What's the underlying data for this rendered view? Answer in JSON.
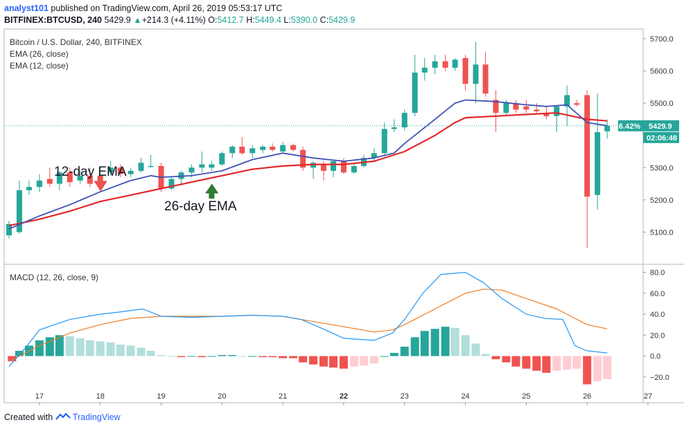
{
  "header": {
    "user": "analyst101",
    "published_text": "published on TradingView.com, April 26, 2019 05:53:17 UTC",
    "symbol": "BITFINEX:BTCUSD, 240",
    "last": "5429.9",
    "change_arrow": "▲",
    "change": "+214.3 (+4.11%)",
    "o_label": "O:",
    "o": "5412.7",
    "h_label": "H:",
    "h": "5449.4",
    "l_label": "L:",
    "l": "5390.0",
    "c_label": "C:",
    "c": "5429.9"
  },
  "legend": {
    "title": "Bitcoin / U.S. Dollar, 240, BITFINEX",
    "ema26": "EMA (26, close)",
    "ema12": "EMA (12, close)",
    "macd": "MACD (12, 26, close, 9)"
  },
  "annotations": {
    "ema12_label": "12-day EMA",
    "ema26_label": "26-day EMA"
  },
  "price_badges": {
    "pct": "6.42%",
    "price": "5429.9",
    "countdown": "02:06:48"
  },
  "footer": {
    "created_with": "Created with",
    "brand": "TradingView"
  },
  "colors": {
    "up": "#26a69a",
    "down": "#ef5350",
    "ema26": "#e3262a",
    "ema12": "#3f51b5",
    "macd_line": "#2196f3",
    "signal_line": "#ef7c21",
    "hist_up_strong": "#26a69a",
    "hist_up_weak": "#b2dfdb",
    "hist_down_strong": "#ef5350",
    "hist_down_weak": "#ffcdd2",
    "grid": "#e6e6e6",
    "badge_teal": "#26a69a"
  },
  "chart_data": [
    {
      "type": "candlestick",
      "title": "Bitcoin / U.S. Dollar, 240, BITFINEX",
      "x_ticks": [
        "17",
        "18",
        "19",
        "20",
        "21",
        "22",
        "23",
        "24",
        "25",
        "26",
        "27"
      ],
      "x_range": [
        16.5,
        27.0
      ],
      "ylim": [
        5000,
        5730
      ],
      "y_ticks": [
        "5100.0",
        "5200.0",
        "5300.0",
        "5400.0",
        "5500.0",
        "5600.0",
        "5700.0"
      ],
      "candles": [
        {
          "x": 16.5,
          "o": 5090,
          "h": 5135,
          "l": 5080,
          "c": 5125
        },
        {
          "x": 16.67,
          "o": 5100,
          "h": 5260,
          "l": 5095,
          "c": 5230
        },
        {
          "x": 16.83,
          "o": 5230,
          "h": 5260,
          "l": 5215,
          "c": 5240
        },
        {
          "x": 17.0,
          "o": 5240,
          "h": 5280,
          "l": 5225,
          "c": 5260
        },
        {
          "x": 17.17,
          "o": 5265,
          "h": 5300,
          "l": 5240,
          "c": 5250
        },
        {
          "x": 17.33,
          "o": 5250,
          "h": 5290,
          "l": 5230,
          "c": 5285
        },
        {
          "x": 17.5,
          "o": 5285,
          "h": 5300,
          "l": 5240,
          "c": 5255
        },
        {
          "x": 17.67,
          "o": 5260,
          "h": 5290,
          "l": 5250,
          "c": 5275
        },
        {
          "x": 17.83,
          "o": 5275,
          "h": 5300,
          "l": 5240,
          "c": 5250
        },
        {
          "x": 18.0,
          "o": 5250,
          "h": 5265,
          "l": 5235,
          "c": 5240
        },
        {
          "x": 18.17,
          "o": 5285,
          "h": 5320,
          "l": 5275,
          "c": 5300
        },
        {
          "x": 18.33,
          "o": 5300,
          "h": 5310,
          "l": 5270,
          "c": 5280
        },
        {
          "x": 18.5,
          "o": 5280,
          "h": 5300,
          "l": 5270,
          "c": 5290
        },
        {
          "x": 18.67,
          "o": 5290,
          "h": 5330,
          "l": 5285,
          "c": 5315
        },
        {
          "x": 18.83,
          "o": 5305,
          "h": 5340,
          "l": 5300,
          "c": 5305
        },
        {
          "x": 19.0,
          "o": 5305,
          "h": 5315,
          "l": 5225,
          "c": 5235
        },
        {
          "x": 19.17,
          "o": 5235,
          "h": 5270,
          "l": 5230,
          "c": 5265
        },
        {
          "x": 19.33,
          "o": 5265,
          "h": 5290,
          "l": 5250,
          "c": 5285
        },
        {
          "x": 19.5,
          "o": 5285,
          "h": 5310,
          "l": 5270,
          "c": 5300
        },
        {
          "x": 19.67,
          "o": 5300,
          "h": 5350,
          "l": 5285,
          "c": 5310
        },
        {
          "x": 19.83,
          "o": 5300,
          "h": 5320,
          "l": 5290,
          "c": 5310
        },
        {
          "x": 20.0,
          "o": 5310,
          "h": 5350,
          "l": 5305,
          "c": 5345
        },
        {
          "x": 20.17,
          "o": 5345,
          "h": 5370,
          "l": 5330,
          "c": 5365
        },
        {
          "x": 20.33,
          "o": 5365,
          "h": 5395,
          "l": 5340,
          "c": 5345
        },
        {
          "x": 20.5,
          "o": 5345,
          "h": 5370,
          "l": 5330,
          "c": 5360
        },
        {
          "x": 20.67,
          "o": 5355,
          "h": 5370,
          "l": 5345,
          "c": 5365
        },
        {
          "x": 20.83,
          "o": 5365,
          "h": 5375,
          "l": 5350,
          "c": 5355
        },
        {
          "x": 21.0,
          "o": 5350,
          "h": 5380,
          "l": 5345,
          "c": 5370
        },
        {
          "x": 21.17,
          "o": 5370,
          "h": 5375,
          "l": 5350,
          "c": 5355
        },
        {
          "x": 21.33,
          "o": 5355,
          "h": 5365,
          "l": 5290,
          "c": 5300
        },
        {
          "x": 21.5,
          "o": 5300,
          "h": 5320,
          "l": 5265,
          "c": 5315
        },
        {
          "x": 21.67,
          "o": 5310,
          "h": 5320,
          "l": 5260,
          "c": 5290
        },
        {
          "x": 21.83,
          "o": 5290,
          "h": 5325,
          "l": 5270,
          "c": 5320
        },
        {
          "x": 22.0,
          "o": 5320,
          "h": 5330,
          "l": 5280,
          "c": 5285
        },
        {
          "x": 22.17,
          "o": 5285,
          "h": 5310,
          "l": 5280,
          "c": 5305
        },
        {
          "x": 22.33,
          "o": 5305,
          "h": 5340,
          "l": 5300,
          "c": 5330
        },
        {
          "x": 22.5,
          "o": 5330,
          "h": 5360,
          "l": 5320,
          "c": 5345
        },
        {
          "x": 22.67,
          "o": 5345,
          "h": 5440,
          "l": 5335,
          "c": 5420
        },
        {
          "x": 22.83,
          "o": 5420,
          "h": 5450,
          "l": 5410,
          "c": 5425
        },
        {
          "x": 23.0,
          "o": 5425,
          "h": 5480,
          "l": 5415,
          "c": 5470
        },
        {
          "x": 23.17,
          "o": 5470,
          "h": 5650,
          "l": 5460,
          "c": 5595
        },
        {
          "x": 23.33,
          "o": 5595,
          "h": 5640,
          "l": 5570,
          "c": 5610
        },
        {
          "x": 23.5,
          "o": 5610,
          "h": 5650,
          "l": 5590,
          "c": 5630
        },
        {
          "x": 23.67,
          "o": 5630,
          "h": 5650,
          "l": 5600,
          "c": 5610
        },
        {
          "x": 23.83,
          "o": 5610,
          "h": 5640,
          "l": 5600,
          "c": 5635
        },
        {
          "x": 24.0,
          "o": 5640,
          "h": 5650,
          "l": 5540,
          "c": 5560
        },
        {
          "x": 24.17,
          "o": 5560,
          "h": 5690,
          "l": 5500,
          "c": 5620
        },
        {
          "x": 24.33,
          "o": 5620,
          "h": 5660,
          "l": 5520,
          "c": 5530
        },
        {
          "x": 24.5,
          "o": 5510,
          "h": 5540,
          "l": 5410,
          "c": 5470
        },
        {
          "x": 24.67,
          "o": 5470,
          "h": 5510,
          "l": 5460,
          "c": 5500
        },
        {
          "x": 24.83,
          "o": 5500,
          "h": 5510,
          "l": 5470,
          "c": 5480
        },
        {
          "x": 25.0,
          "o": 5490,
          "h": 5510,
          "l": 5470,
          "c": 5480
        },
        {
          "x": 25.17,
          "o": 5480,
          "h": 5500,
          "l": 5470,
          "c": 5475
        },
        {
          "x": 25.33,
          "o": 5470,
          "h": 5490,
          "l": 5450,
          "c": 5460
        },
        {
          "x": 25.5,
          "o": 5460,
          "h": 5490,
          "l": 5410,
          "c": 5490
        },
        {
          "x": 25.67,
          "o": 5490,
          "h": 5555,
          "l": 5430,
          "c": 5525
        },
        {
          "x": 25.83,
          "o": 5500,
          "h": 5510,
          "l": 5490,
          "c": 5495
        },
        {
          "x": 26.0,
          "o": 5525,
          "h": 5540,
          "l": 5050,
          "c": 5210
        },
        {
          "x": 26.17,
          "o": 5215,
          "h": 5530,
          "l": 5170,
          "c": 5410
        },
        {
          "x": 26.33,
          "o": 5412.7,
          "h": 5449.4,
          "l": 5390.0,
          "c": 5429.9
        }
      ],
      "ema12": [
        [
          16.5,
          5110
        ],
        [
          17.0,
          5150
        ],
        [
          17.5,
          5185
        ],
        [
          18.0,
          5225
        ],
        [
          18.5,
          5260
        ],
        [
          18.83,
          5275
        ],
        [
          19.0,
          5270
        ],
        [
          19.5,
          5275
        ],
        [
          20.0,
          5290
        ],
        [
          20.5,
          5325
        ],
        [
          21.0,
          5345
        ],
        [
          21.5,
          5330
        ],
        [
          22.0,
          5320
        ],
        [
          22.5,
          5330
        ],
        [
          22.83,
          5345
        ],
        [
          23.0,
          5375
        ],
        [
          23.5,
          5450
        ],
        [
          23.83,
          5500
        ],
        [
          24.0,
          5510
        ],
        [
          24.5,
          5505
        ],
        [
          25.0,
          5495
        ],
        [
          25.33,
          5490
        ],
        [
          25.67,
          5495
        ],
        [
          26.0,
          5440
        ],
        [
          26.33,
          5430
        ]
      ],
      "ema26": [
        [
          16.5,
          5120
        ],
        [
          17.0,
          5140
        ],
        [
          17.5,
          5165
        ],
        [
          18.0,
          5195
        ],
        [
          18.5,
          5215
        ],
        [
          19.0,
          5235
        ],
        [
          19.5,
          5255
        ],
        [
          20.0,
          5275
        ],
        [
          20.5,
          5295
        ],
        [
          21.0,
          5305
        ],
        [
          21.5,
          5310
        ],
        [
          22.0,
          5310
        ],
        [
          22.5,
          5320
        ],
        [
          23.0,
          5350
        ],
        [
          23.5,
          5400
        ],
        [
          23.83,
          5440
        ],
        [
          24.0,
          5455
        ],
        [
          24.5,
          5460
        ],
        [
          25.0,
          5465
        ],
        [
          25.5,
          5470
        ],
        [
          26.0,
          5450
        ],
        [
          26.33,
          5445
        ]
      ]
    },
    {
      "type": "macd",
      "title": "MACD (12, 26, close, 9)",
      "ylim": [
        -30,
        85
      ],
      "y_ticks": [
        "80.0",
        "60.0",
        "40.0",
        "20.0",
        "0.0",
        "−20.0"
      ],
      "macd": [
        [
          16.5,
          -10
        ],
        [
          16.8,
          10
        ],
        [
          17.0,
          25
        ],
        [
          17.5,
          35
        ],
        [
          18.0,
          40
        ],
        [
          18.3,
          42
        ],
        [
          18.7,
          45
        ],
        [
          19.0,
          38
        ],
        [
          19.5,
          37
        ],
        [
          20.0,
          38
        ],
        [
          20.5,
          39
        ],
        [
          21.0,
          38
        ],
        [
          21.3,
          35
        ],
        [
          21.7,
          25
        ],
        [
          22.0,
          17
        ],
        [
          22.5,
          15
        ],
        [
          22.8,
          22
        ],
        [
          23.0,
          35
        ],
        [
          23.3,
          60
        ],
        [
          23.6,
          78
        ],
        [
          24.0,
          80
        ],
        [
          24.3,
          70
        ],
        [
          24.6,
          55
        ],
        [
          25.0,
          40
        ],
        [
          25.3,
          36
        ],
        [
          25.6,
          35
        ],
        [
          25.8,
          10
        ],
        [
          26.0,
          5
        ],
        [
          26.33,
          3
        ]
      ],
      "signal": [
        [
          16.5,
          -5
        ],
        [
          17.0,
          10
        ],
        [
          17.5,
          22
        ],
        [
          18.0,
          30
        ],
        [
          18.5,
          36
        ],
        [
          19.0,
          38
        ],
        [
          19.5,
          38
        ],
        [
          20.0,
          38
        ],
        [
          20.5,
          39
        ],
        [
          21.0,
          38
        ],
        [
          21.5,
          33
        ],
        [
          22.0,
          28
        ],
        [
          22.5,
          23
        ],
        [
          22.8,
          25
        ],
        [
          23.0,
          30
        ],
        [
          23.5,
          45
        ],
        [
          24.0,
          60
        ],
        [
          24.3,
          64
        ],
        [
          24.6,
          63
        ],
        [
          25.0,
          55
        ],
        [
          25.5,
          45
        ],
        [
          25.8,
          36
        ],
        [
          26.0,
          30
        ],
        [
          26.33,
          26
        ]
      ],
      "histogram": [
        {
          "x": 16.55,
          "v": -5
        },
        {
          "x": 16.67,
          "v": 5
        },
        {
          "x": 16.83,
          "v": 10
        },
        {
          "x": 17.0,
          "v": 15
        },
        {
          "x": 17.17,
          "v": 18
        },
        {
          "x": 17.33,
          "v": 20
        },
        {
          "x": 17.5,
          "v": 19
        },
        {
          "x": 17.67,
          "v": 17
        },
        {
          "x": 17.83,
          "v": 15
        },
        {
          "x": 18.0,
          "v": 14
        },
        {
          "x": 18.17,
          "v": 13
        },
        {
          "x": 18.33,
          "v": 11
        },
        {
          "x": 18.5,
          "v": 10
        },
        {
          "x": 18.67,
          "v": 8
        },
        {
          "x": 18.83,
          "v": 5
        },
        {
          "x": 19.0,
          "v": 1
        },
        {
          "x": 19.17,
          "v": 0
        },
        {
          "x": 19.33,
          "v": -1
        },
        {
          "x": 19.5,
          "v": 0
        },
        {
          "x": 19.67,
          "v": -1
        },
        {
          "x": 19.83,
          "v": 0
        },
        {
          "x": 20.0,
          "v": 1
        },
        {
          "x": 20.17,
          "v": 1
        },
        {
          "x": 20.33,
          "v": 0
        },
        {
          "x": 20.5,
          "v": 0
        },
        {
          "x": 20.67,
          "v": -1
        },
        {
          "x": 20.83,
          "v": -1
        },
        {
          "x": 21.0,
          "v": -2
        },
        {
          "x": 21.17,
          "v": -2
        },
        {
          "x": 21.33,
          "v": -6
        },
        {
          "x": 21.5,
          "v": -8
        },
        {
          "x": 21.67,
          "v": -10
        },
        {
          "x": 21.83,
          "v": -11
        },
        {
          "x": 22.0,
          "v": -12
        },
        {
          "x": 22.17,
          "v": -10
        },
        {
          "x": 22.33,
          "v": -9
        },
        {
          "x": 22.5,
          "v": -7
        },
        {
          "x": 22.67,
          "v": 0
        },
        {
          "x": 22.83,
          "v": 3
        },
        {
          "x": 23.0,
          "v": 9
        },
        {
          "x": 23.17,
          "v": 18
        },
        {
          "x": 23.33,
          "v": 24
        },
        {
          "x": 23.5,
          "v": 26
        },
        {
          "x": 23.67,
          "v": 28
        },
        {
          "x": 23.83,
          "v": 27
        },
        {
          "x": 24.0,
          "v": 20
        },
        {
          "x": 24.17,
          "v": 12
        },
        {
          "x": 24.33,
          "v": 2
        },
        {
          "x": 24.5,
          "v": -3
        },
        {
          "x": 24.67,
          "v": -6
        },
        {
          "x": 24.83,
          "v": -10
        },
        {
          "x": 25.0,
          "v": -12
        },
        {
          "x": 25.17,
          "v": -14
        },
        {
          "x": 25.33,
          "v": -16
        },
        {
          "x": 25.5,
          "v": -14
        },
        {
          "x": 25.67,
          "v": -13
        },
        {
          "x": 25.83,
          "v": -12
        },
        {
          "x": 26.0,
          "v": -27
        },
        {
          "x": 26.17,
          "v": -24
        },
        {
          "x": 26.33,
          "v": -22
        }
      ]
    }
  ]
}
